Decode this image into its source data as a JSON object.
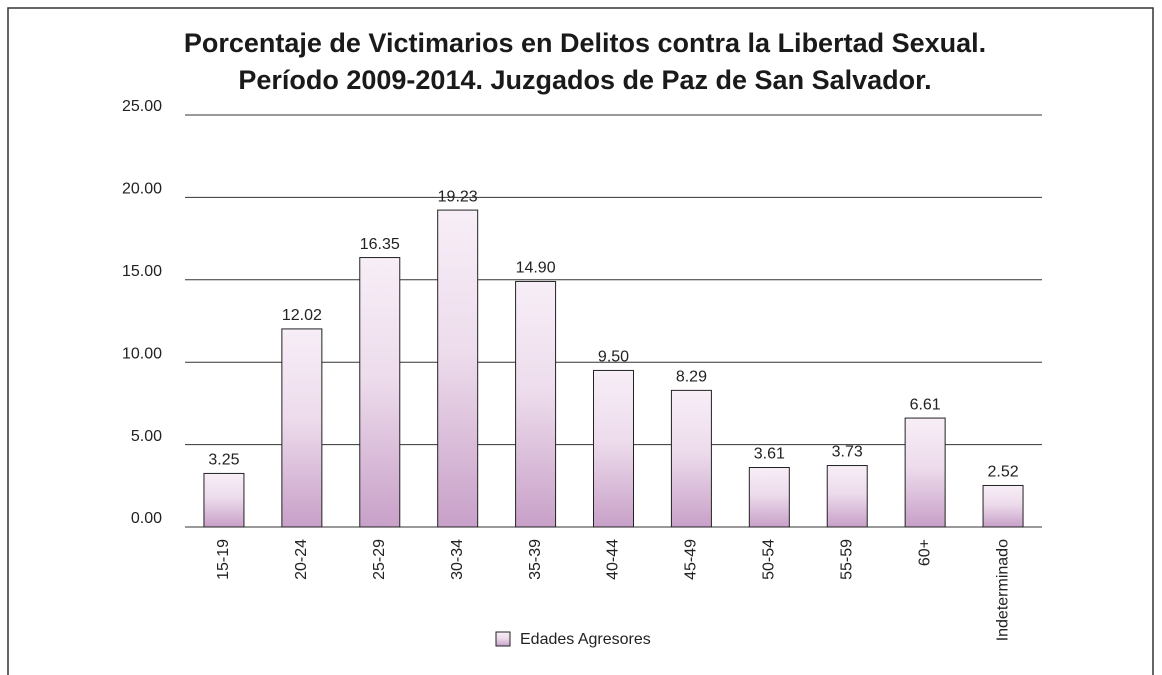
{
  "chart_data": {
    "type": "bar",
    "title": [
      "Porcentaje de Victimarios en Delitos contra la Libertad Sexual.",
      "Período 2009-2014. Juzgados de Paz de San Salvador."
    ],
    "categories": [
      "15-19",
      "20-24",
      "25-29",
      "30-34",
      "35-39",
      "40-44",
      "45-49",
      "50-54",
      "55-59",
      "60+",
      "Indeterminado"
    ],
    "series": [
      {
        "name": "Edades Agresores",
        "color": "#c8a0c8",
        "values": [
          3.25,
          12.02,
          16.35,
          19.23,
          14.9,
          9.5,
          8.29,
          3.61,
          3.73,
          6.61,
          2.52
        ],
        "value_labels": [
          "3.25",
          "12.02",
          "16.35",
          "19.23",
          "14.90",
          "9.50",
          "8.29",
          "3.61",
          "3.73",
          "6.61",
          "2.52"
        ]
      }
    ],
    "ylim": [
      0,
      25
    ],
    "yticks": [
      {
        "value": 0,
        "label": "0.00"
      },
      {
        "value": 5,
        "label": "5.00"
      },
      {
        "value": 10,
        "label": "10.00"
      },
      {
        "value": 15,
        "label": "15.00"
      },
      {
        "value": 20,
        "label": "20.00"
      },
      {
        "value": 25,
        "label": "25.00"
      }
    ],
    "grid": true,
    "legend": "bottom"
  }
}
